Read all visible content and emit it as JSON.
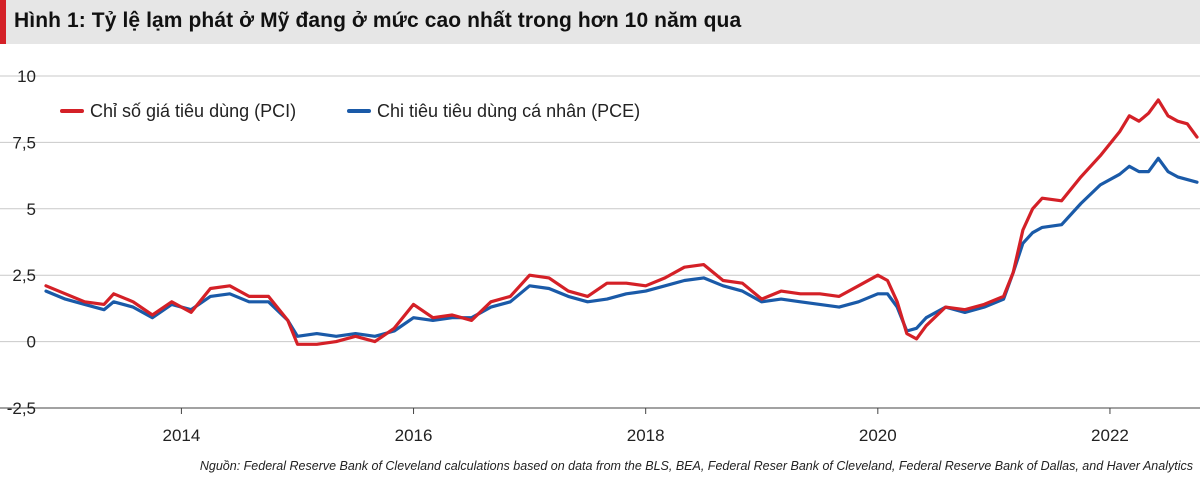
{
  "header": {
    "title": "Hình 1: Tỷ lệ lạm phát ở Mỹ đang ở mức cao nhất trong hơn 10 năm qua"
  },
  "source": "Nguồn: Federal Reserve Bank of Cleveland calculations based on data from the BLS, BEA, Federal Reser Bank of Cleveland, Federal Reserve Bank of Dallas, and Haver Analytics",
  "chart_data": {
    "type": "line",
    "title": "Hình 1: Tỷ lệ lạm phát ở Mỹ đang ở mức cao nhất trong hơn 10 năm qua",
    "xlabel": "",
    "ylabel": "",
    "ylim": [
      -2.5,
      10
    ],
    "xlim": [
      "2012-11",
      "2022-10"
    ],
    "y_ticks": [
      "10",
      "7,5",
      "5",
      "2,5",
      "0",
      "-2,5"
    ],
    "y_tick_values": [
      10,
      7.5,
      5,
      2.5,
      0,
      -2.5
    ],
    "x_ticks": [
      "2014",
      "2016",
      "2018",
      "2020",
      "2022"
    ],
    "x_tick_values": [
      "2014-01",
      "2016-01",
      "2018-01",
      "2020-01",
      "2022-01"
    ],
    "grid": "horizontal",
    "legend_position": "top-left",
    "series": [
      {
        "name": "Chỉ số giá tiêu dùng (PCI)",
        "color": "#d42027",
        "x": [
          "2012-11",
          "2013-01",
          "2013-03",
          "2013-05",
          "2013-06",
          "2013-08",
          "2013-10",
          "2013-12",
          "2014-02",
          "2014-04",
          "2014-06",
          "2014-08",
          "2014-10",
          "2014-12",
          "2015-01",
          "2015-03",
          "2015-05",
          "2015-07",
          "2015-09",
          "2015-11",
          "2016-01",
          "2016-03",
          "2016-05",
          "2016-07",
          "2016-09",
          "2016-11",
          "2017-01",
          "2017-03",
          "2017-05",
          "2017-07",
          "2017-09",
          "2017-11",
          "2018-01",
          "2018-03",
          "2018-05",
          "2018-07",
          "2018-09",
          "2018-11",
          "2019-01",
          "2019-03",
          "2019-05",
          "2019-07",
          "2019-09",
          "2019-11",
          "2020-01",
          "2020-02",
          "2020-03",
          "2020-04",
          "2020-05",
          "2020-06",
          "2020-08",
          "2020-10",
          "2020-12",
          "2021-02",
          "2021-03",
          "2021-04",
          "2021-05",
          "2021-06",
          "2021-08",
          "2021-10",
          "2021-12",
          "2022-02",
          "2022-03",
          "2022-04",
          "2022-05",
          "2022-06",
          "2022-07",
          "2022-08",
          "2022-09",
          "2022-10"
        ],
        "values": [
          2.1,
          1.8,
          1.5,
          1.4,
          1.8,
          1.5,
          1.0,
          1.5,
          1.1,
          2.0,
          2.1,
          1.7,
          1.7,
          0.8,
          -0.1,
          -0.1,
          0.0,
          0.2,
          0.0,
          0.5,
          1.4,
          0.9,
          1.0,
          0.8,
          1.5,
          1.7,
          2.5,
          2.4,
          1.9,
          1.7,
          2.2,
          2.2,
          2.1,
          2.4,
          2.8,
          2.9,
          2.3,
          2.2,
          1.6,
          1.9,
          1.8,
          1.8,
          1.7,
          2.1,
          2.5,
          2.3,
          1.5,
          0.3,
          0.1,
          0.6,
          1.3,
          1.2,
          1.4,
          1.7,
          2.6,
          4.2,
          5.0,
          5.4,
          5.3,
          6.2,
          7.0,
          7.9,
          8.5,
          8.3,
          8.6,
          9.1,
          8.5,
          8.3,
          8.2,
          7.7
        ]
      },
      {
        "name": "Chi tiêu tiêu dùng cá nhân (PCE)",
        "color": "#1a5aa8",
        "x": [
          "2012-11",
          "2013-01",
          "2013-03",
          "2013-05",
          "2013-06",
          "2013-08",
          "2013-10",
          "2013-12",
          "2014-02",
          "2014-04",
          "2014-06",
          "2014-08",
          "2014-10",
          "2014-12",
          "2015-01",
          "2015-03",
          "2015-05",
          "2015-07",
          "2015-09",
          "2015-11",
          "2016-01",
          "2016-03",
          "2016-05",
          "2016-07",
          "2016-09",
          "2016-11",
          "2017-01",
          "2017-03",
          "2017-05",
          "2017-07",
          "2017-09",
          "2017-11",
          "2018-01",
          "2018-03",
          "2018-05",
          "2018-07",
          "2018-09",
          "2018-11",
          "2019-01",
          "2019-03",
          "2019-05",
          "2019-07",
          "2019-09",
          "2019-11",
          "2020-01",
          "2020-02",
          "2020-03",
          "2020-04",
          "2020-05",
          "2020-06",
          "2020-08",
          "2020-10",
          "2020-12",
          "2021-02",
          "2021-03",
          "2021-04",
          "2021-05",
          "2021-06",
          "2021-08",
          "2021-10",
          "2021-12",
          "2022-02",
          "2022-03",
          "2022-04",
          "2022-05",
          "2022-06",
          "2022-07",
          "2022-08",
          "2022-09",
          "2022-10"
        ],
        "values": [
          1.9,
          1.6,
          1.4,
          1.2,
          1.5,
          1.3,
          0.9,
          1.4,
          1.2,
          1.7,
          1.8,
          1.5,
          1.5,
          0.8,
          0.2,
          0.3,
          0.2,
          0.3,
          0.2,
          0.4,
          0.9,
          0.8,
          0.9,
          0.9,
          1.3,
          1.5,
          2.1,
          2.0,
          1.7,
          1.5,
          1.6,
          1.8,
          1.9,
          2.1,
          2.3,
          2.4,
          2.1,
          1.9,
          1.5,
          1.6,
          1.5,
          1.4,
          1.3,
          1.5,
          1.8,
          1.8,
          1.3,
          0.4,
          0.5,
          0.9,
          1.3,
          1.1,
          1.3,
          1.6,
          2.6,
          3.7,
          4.1,
          4.3,
          4.4,
          5.2,
          5.9,
          6.3,
          6.6,
          6.4,
          6.4,
          6.9,
          6.4,
          6.2,
          6.1,
          6.0
        ]
      }
    ]
  }
}
